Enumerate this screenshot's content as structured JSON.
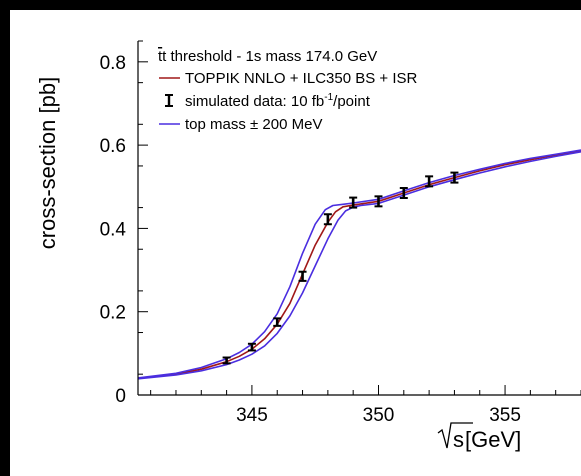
{
  "colors": {
    "background_outer": "#000000",
    "plot_background": "#ffffff",
    "central_curve": "#a01818",
    "band_curves": "#4a2ee0",
    "data_points": "#000000"
  },
  "legend": {
    "title_prefix": "t",
    "title_suffix": "t threshold - 1s mass 174.0 GeV",
    "entries": [
      {
        "label": "TOPPIK NNLO + ILC350 BS + ISR",
        "marker": "line",
        "color": "#a01818"
      },
      {
        "label_main": "simulated data: 10 fb",
        "label_sup": "-1",
        "label_tail": "/point",
        "marker": "errorbar",
        "color": "#000000"
      },
      {
        "label": "top mass ± 200 MeV",
        "marker": "line",
        "color": "#4a2ee0"
      }
    ],
    "placement": "top-left"
  },
  "chart_data": {
    "type": "line",
    "xlabel_radical": "s",
    "xlabel_unit": " [GeV]",
    "ylabel": "cross-section [pb]",
    "xlim": [
      340.5,
      358
    ],
    "ylim": [
      0,
      0.85
    ],
    "x_ticks": [
      345,
      350,
      355
    ],
    "x_tick_labels": [
      "345",
      "350",
      "355"
    ],
    "y_ticks": [
      0,
      0.2,
      0.4,
      0.6,
      0.8
    ],
    "y_tick_labels": [
      "0",
      "0.2",
      "0.4",
      "0.6",
      "0.8"
    ],
    "grid": false,
    "series": [
      {
        "name": "TOPPIK NNLO + ILC350 BS + ISR",
        "style": "line",
        "color": "#a01818",
        "x": [
          340.5,
          342,
          343,
          344,
          344.5,
          345,
          345.5,
          346,
          346.5,
          347,
          347.5,
          348,
          348.3,
          348.6,
          349,
          350,
          351,
          352,
          353,
          354,
          355,
          356,
          357,
          358
        ],
        "y": [
          0.04,
          0.05,
          0.062,
          0.08,
          0.093,
          0.11,
          0.135,
          0.17,
          0.22,
          0.29,
          0.36,
          0.415,
          0.44,
          0.452,
          0.456,
          0.465,
          0.485,
          0.505,
          0.522,
          0.538,
          0.553,
          0.565,
          0.576,
          0.586
        ]
      },
      {
        "name": "top mass ± 200 MeV",
        "style": "line",
        "color": "#4a2ee0",
        "x": [
          340.5,
          342,
          343,
          344,
          344.5,
          345,
          345.5,
          346,
          346.5,
          347,
          347.5,
          347.9,
          348.2,
          348.6,
          349,
          350,
          351,
          352,
          353,
          354,
          355,
          356,
          357,
          358
        ],
        "y": [
          0.041,
          0.052,
          0.066,
          0.087,
          0.102,
          0.122,
          0.152,
          0.195,
          0.26,
          0.34,
          0.41,
          0.445,
          0.455,
          0.458,
          0.461,
          0.47,
          0.49,
          0.51,
          0.527,
          0.542,
          0.556,
          0.568,
          0.578,
          0.588
        ]
      },
      {
        "name": "top mass ± 200 MeV",
        "style": "line",
        "color": "#4a2ee0",
        "x": [
          340.5,
          342,
          343,
          344,
          344.5,
          345,
          345.5,
          346,
          346.5,
          347,
          347.5,
          348,
          348.4,
          348.7,
          349,
          349.3,
          350,
          351,
          352,
          353,
          354,
          355,
          356,
          357,
          358
        ],
        "y": [
          0.039,
          0.048,
          0.058,
          0.073,
          0.084,
          0.098,
          0.118,
          0.148,
          0.19,
          0.245,
          0.31,
          0.375,
          0.42,
          0.442,
          0.451,
          0.455,
          0.46,
          0.48,
          0.5,
          0.517,
          0.533,
          0.548,
          0.561,
          0.573,
          0.584
        ]
      },
      {
        "name": "simulated data: 10 fb-1/point",
        "style": "errorbar",
        "color": "#000000",
        "x": [
          344,
          345,
          346,
          347,
          348,
          349,
          350,
          351,
          352,
          353
        ],
        "y": [
          0.083,
          0.115,
          0.175,
          0.285,
          0.422,
          0.462,
          0.465,
          0.485,
          0.513,
          0.522
        ],
        "yerr": [
          0.007,
          0.008,
          0.009,
          0.011,
          0.012,
          0.012,
          0.012,
          0.012,
          0.012,
          0.012
        ]
      }
    ]
  }
}
